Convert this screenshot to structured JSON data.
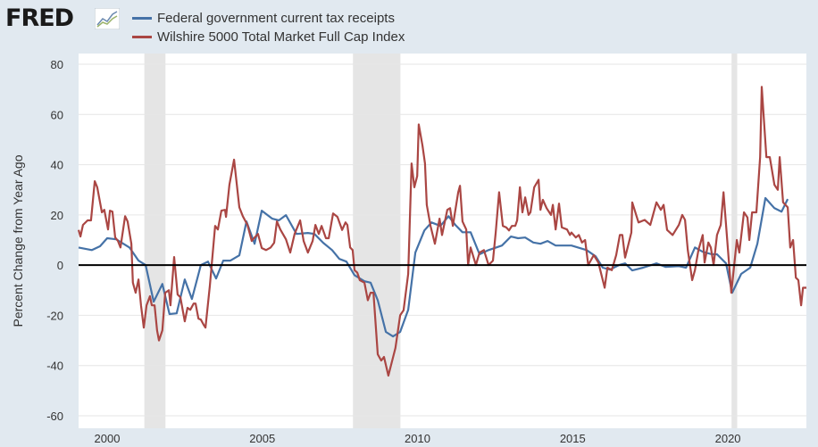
{
  "brand": {
    "logo_text": "FRED"
  },
  "chart_data": {
    "type": "line",
    "title": "",
    "xlabel": "",
    "ylabel": "Percent Change from Year Ago",
    "xlim": [
      1999.08,
      2022.53
    ],
    "ylim": [
      -60,
      80
    ],
    "xticks": [
      2000,
      2005,
      2010,
      2015,
      2020
    ],
    "xtick_labels": [
      "2000",
      "2005",
      "2010",
      "2015",
      "2020"
    ],
    "yticks": [
      -60,
      -40,
      -20,
      0,
      20,
      40,
      60,
      80
    ],
    "ytick_labels": [
      "-60",
      "-40",
      "-20",
      "0",
      "20",
      "40",
      "60",
      "80"
    ],
    "grid": true,
    "legend_position": "top-left",
    "recessions": [
      [
        2001.2,
        2001.88
      ],
      [
        2007.92,
        2009.45
      ],
      [
        2020.12,
        2020.3
      ]
    ],
    "series": [
      {
        "name": "Federal government current tax receipts",
        "color": "#4572a7",
        "x": [
          1999.08,
          1999.51,
          1999.77,
          2000.0,
          2000.29,
          2000.72,
          2001.01,
          2001.24,
          2001.5,
          2001.78,
          2002.01,
          2002.24,
          2002.5,
          2002.73,
          2003.02,
          2003.25,
          2003.51,
          2003.74,
          2003.97,
          2004.26,
          2004.49,
          2004.75,
          2004.98,
          2005.32,
          2005.53,
          2005.76,
          2006.1,
          2006.47,
          2006.68,
          2006.96,
          2007.25,
          2007.48,
          2007.71,
          2007.97,
          2008.29,
          2008.49,
          2008.72,
          2008.98,
          2009.21,
          2009.44,
          2009.7,
          2009.93,
          2010.22,
          2010.45,
          2010.74,
          2011.0,
          2011.22,
          2011.45,
          2011.71,
          2012.0,
          2012.29,
          2012.72,
          2013.01,
          2013.24,
          2013.47,
          2013.73,
          2013.96,
          2014.19,
          2014.45,
          2014.96,
          2015.45,
          2015.74,
          2015.97,
          2016.2,
          2016.49,
          2016.69,
          2016.92,
          2017.27,
          2017.7,
          2017.99,
          2018.42,
          2018.65,
          2018.94,
          2019.19,
          2019.48,
          2019.65,
          2019.94,
          2020.14,
          2020.43,
          2020.72,
          2020.95,
          2021.21,
          2021.5,
          2021.73,
          2021.93
        ],
        "y": [
          7,
          6,
          7.5,
          10.7,
          10.3,
          7,
          1.8,
          0,
          -14.6,
          -7.5,
          -19.5,
          -19.2,
          -5.7,
          -13.5,
          0,
          1.4,
          -5.3,
          1.8,
          1.8,
          3.9,
          17.4,
          8.5,
          21.7,
          18.5,
          17.8,
          19.9,
          12.4,
          12.8,
          12.4,
          8.9,
          6,
          2.5,
          1.4,
          -4,
          -6.4,
          -7,
          -14,
          -26.6,
          -28.4,
          -26.6,
          -17.8,
          5,
          13.8,
          17,
          15.6,
          19.5,
          16,
          13.1,
          13.1,
          4.3,
          6,
          7.8,
          11.4,
          10.7,
          11,
          9,
          8.5,
          9.6,
          7.8,
          7.8,
          6,
          3.5,
          -1,
          -1.8,
          0,
          0.7,
          -2.1,
          -1,
          0.7,
          -0.7,
          -0.4,
          -1,
          7,
          5.3,
          4.3,
          4.3,
          0.7,
          -11,
          -3.5,
          -1,
          8.5,
          26.7,
          22.7,
          21.3,
          26.3
        ]
      },
      {
        "name": "Wilshire 5000 Total Market Full Cap Index",
        "color": "#aa4643",
        "x": [
          1999.08,
          1999.14,
          1999.22,
          1999.37,
          1999.48,
          1999.6,
          1999.68,
          1999.83,
          1999.91,
          2000.03,
          2000.09,
          2000.17,
          2000.26,
          2000.35,
          2000.43,
          2000.58,
          2000.66,
          2000.78,
          2000.83,
          2000.92,
          2001.01,
          2001.09,
          2001.18,
          2001.27,
          2001.38,
          2001.44,
          2001.53,
          2001.61,
          2001.67,
          2001.78,
          2001.87,
          2001.99,
          2002.04,
          2002.16,
          2002.27,
          2002.36,
          2002.5,
          2002.59,
          2002.68,
          2002.79,
          2002.85,
          2002.94,
          2003.02,
          2003.11,
          2003.17,
          2003.31,
          2003.48,
          2003.57,
          2003.68,
          2003.8,
          2003.83,
          2003.94,
          2004.09,
          2004.26,
          2004.37,
          2004.52,
          2004.66,
          2004.75,
          2004.86,
          2004.98,
          2005.12,
          2005.27,
          2005.38,
          2005.47,
          2005.58,
          2005.76,
          2005.9,
          2006.04,
          2006.22,
          2006.33,
          2006.47,
          2006.62,
          2006.71,
          2006.82,
          2006.91,
          2007.05,
          2007.14,
          2007.28,
          2007.42,
          2007.57,
          2007.68,
          2007.74,
          2007.83,
          2007.91,
          2007.97,
          2008.06,
          2008.14,
          2008.29,
          2008.4,
          2008.49,
          2008.58,
          2008.72,
          2008.83,
          2008.92,
          2009.06,
          2009.29,
          2009.44,
          2009.55,
          2009.7,
          2009.81,
          2009.9,
          2009.99,
          2010.04,
          2010.16,
          2010.24,
          2010.3,
          2010.42,
          2010.56,
          2010.71,
          2010.79,
          2010.96,
          2011.05,
          2011.14,
          2011.31,
          2011.37,
          2011.45,
          2011.57,
          2011.63,
          2011.71,
          2011.88,
          2012.0,
          2012.14,
          2012.29,
          2012.43,
          2012.52,
          2012.63,
          2012.75,
          2012.86,
          2012.95,
          2013.04,
          2013.15,
          2013.21,
          2013.3,
          2013.38,
          2013.47,
          2013.58,
          2013.64,
          2013.76,
          2013.9,
          2013.96,
          2014.04,
          2014.16,
          2014.3,
          2014.36,
          2014.45,
          2014.56,
          2014.65,
          2014.82,
          2014.91,
          2014.96,
          2015.1,
          2015.2,
          2015.3,
          2015.4,
          2015.5,
          2015.68,
          2015.83,
          2016.03,
          2016.12,
          2016.26,
          2016.4,
          2016.52,
          2016.6,
          2016.69,
          2016.89,
          2016.92,
          2017.12,
          2017.32,
          2017.5,
          2017.7,
          2017.84,
          2017.93,
          2018.04,
          2018.22,
          2018.42,
          2018.53,
          2018.62,
          2018.71,
          2018.85,
          2018.94,
          2019.05,
          2019.19,
          2019.25,
          2019.37,
          2019.45,
          2019.54,
          2019.65,
          2019.77,
          2019.86,
          2020.11,
          2020.29,
          2020.37,
          2020.52,
          2020.63,
          2020.69,
          2020.78,
          2020.92,
          2021.04,
          2021.09,
          2021.24,
          2021.35,
          2021.5,
          2021.61,
          2021.67,
          2021.78,
          2021.93,
          2022.01,
          2022.1,
          2022.19,
          2022.27,
          2022.36,
          2022.42,
          2022.53
        ],
        "y": [
          14,
          11.4,
          16,
          17.8,
          17.8,
          33.4,
          31,
          21,
          22,
          14.2,
          21.7,
          21.3,
          11,
          9.6,
          7,
          19.5,
          17.4,
          8.5,
          -7,
          -11,
          -5.7,
          -16,
          -24.9,
          -16,
          -12.4,
          -16,
          -16,
          -26,
          -30,
          -26,
          -11,
          -10,
          -16,
          3.2,
          -11.7,
          -12.8,
          -22.4,
          -17,
          -17.8,
          -15.3,
          -15.3,
          -21.3,
          -21.7,
          -23.8,
          -24.9,
          -8.2,
          15.6,
          14.2,
          21.7,
          22,
          19.2,
          32,
          42,
          23,
          19.5,
          16,
          9.6,
          11,
          12.4,
          6.8,
          6,
          7,
          8.9,
          17.4,
          14.2,
          10.3,
          5,
          12.4,
          17.8,
          9.6,
          5,
          9.6,
          16,
          12.4,
          15.6,
          10.7,
          10.7,
          20.6,
          19.2,
          14,
          17,
          16,
          7,
          6,
          -2,
          -3,
          -6,
          -7,
          -14,
          -11,
          -11,
          -35.5,
          -38,
          -36.6,
          -44,
          -33,
          -20,
          -18,
          -3.5,
          40.5,
          31,
          35.5,
          56,
          47.6,
          40.5,
          24,
          15.6,
          8.5,
          18.5,
          12,
          22,
          22.7,
          15.6,
          29,
          31.6,
          17.4,
          14.2,
          0,
          7,
          0,
          5,
          6,
          0,
          1.8,
          13,
          29,
          15.6,
          15,
          13.8,
          15.6,
          15.6,
          17.8,
          31,
          21,
          27,
          20,
          21,
          31,
          34,
          22,
          26,
          22.7,
          20,
          24,
          14.2,
          24.5,
          15,
          14.2,
          12,
          13,
          11,
          12,
          9,
          10,
          0,
          4,
          1,
          -9,
          -1,
          -2,
          4,
          12,
          12,
          3,
          13,
          25,
          17,
          18,
          16,
          25,
          22,
          24,
          14,
          12,
          16,
          20,
          18,
          6,
          -6,
          -2,
          6,
          12,
          1,
          9,
          7,
          0,
          12,
          16,
          29,
          -11,
          10,
          5,
          21,
          19,
          10,
          21,
          21,
          43,
          71,
          43,
          43,
          32,
          30,
          43,
          25,
          23,
          7,
          10,
          -5,
          -6,
          -16,
          -9,
          -9
        ]
      }
    ]
  }
}
